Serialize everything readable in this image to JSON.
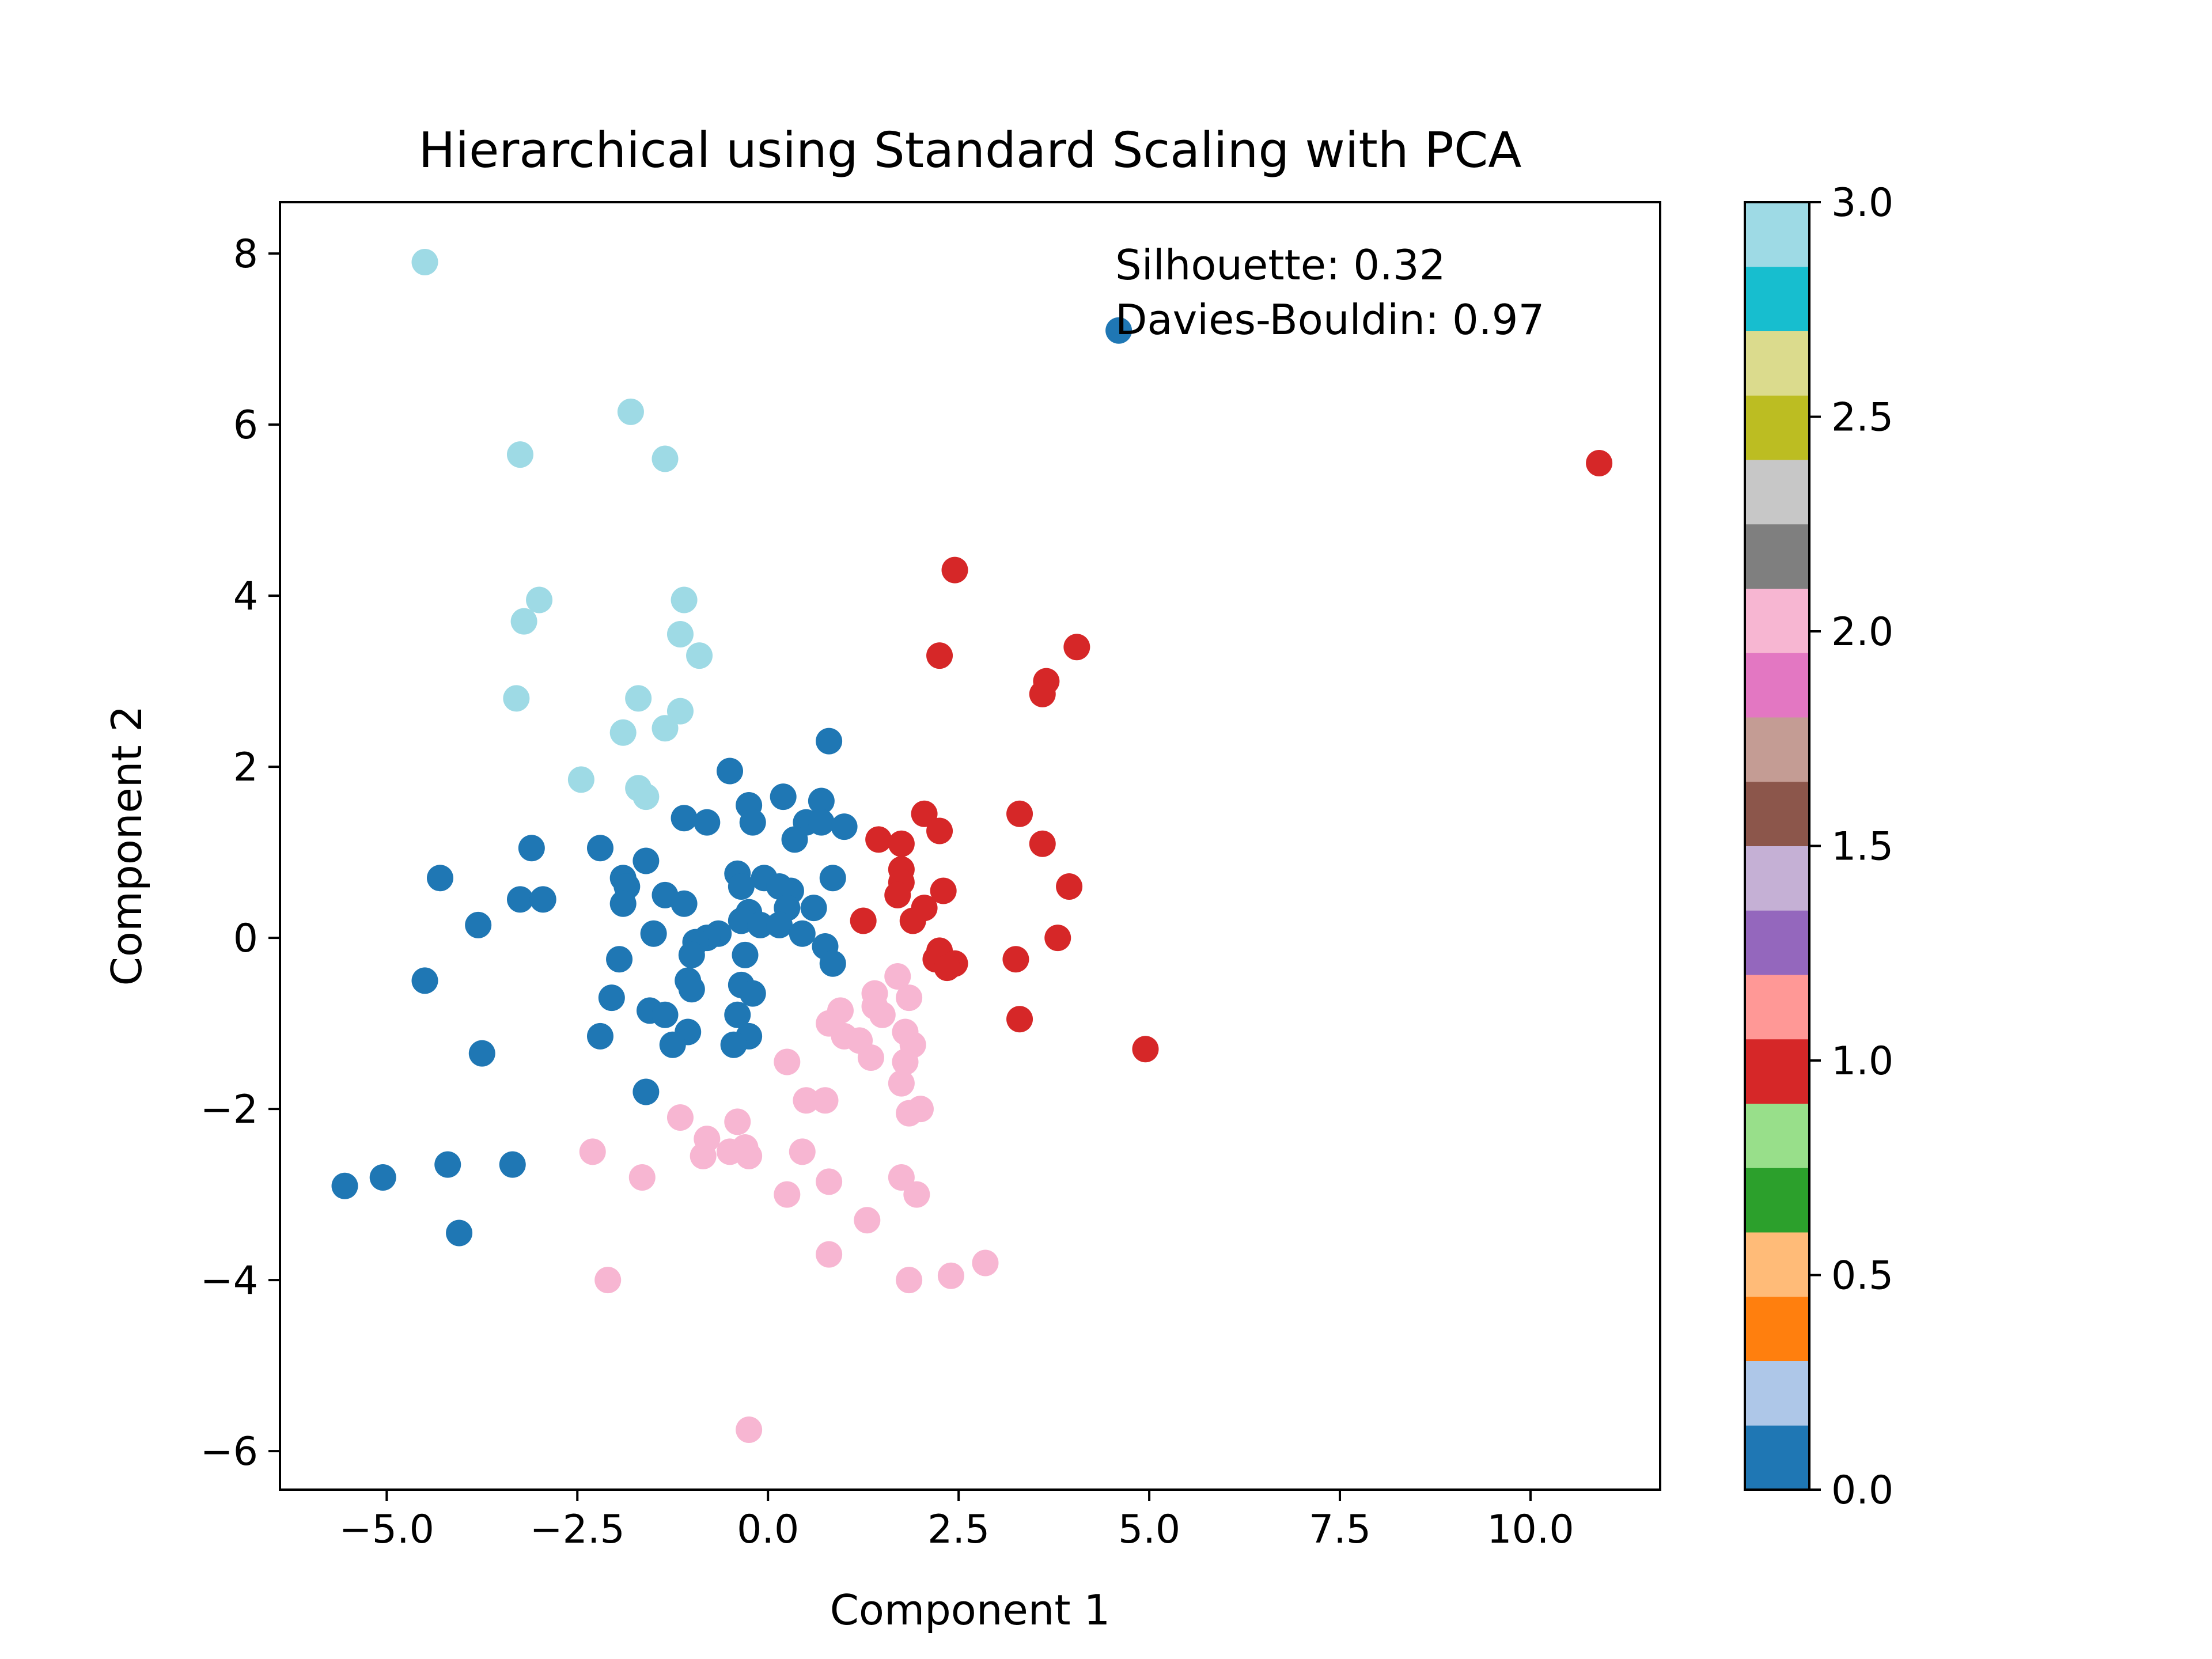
{
  "chart_data": {
    "type": "scatter",
    "title": "Hierarchical using Standard Scaling with PCA",
    "xlabel": "Component 1",
    "ylabel": "Component 2",
    "xlim": [
      -6.4,
      11.7
    ],
    "ylim": [
      -6.45,
      8.6
    ],
    "xticks": [
      -5.0,
      -2.5,
      0.0,
      2.5,
      5.0,
      7.5,
      10.0
    ],
    "xtick_labels": [
      "−5.0",
      "−2.5",
      "0.0",
      "2.5",
      "5.0",
      "7.5",
      "10.0"
    ],
    "yticks": [
      -6,
      -4,
      -2,
      0,
      2,
      4,
      6,
      8
    ],
    "ytick_labels": [
      "−6",
      "−4",
      "−2",
      "0",
      "2",
      "4",
      "6",
      "8"
    ],
    "grid": false,
    "colormap": "tab20",
    "annotations": [
      "Silhouette: 0.32",
      "Davies-Bouldin: 0.97"
    ],
    "colorbar": {
      "range": [
        0.0,
        3.0
      ],
      "ticks": [
        0.0,
        0.5,
        1.0,
        1.5,
        2.0,
        2.5,
        3.0
      ],
      "tick_labels": [
        "0.0",
        "0.5",
        "1.0",
        "1.5",
        "2.0",
        "2.5",
        "3.0"
      ],
      "colors": [
        "#1f77b4",
        "#aec7e8",
        "#ff7f0e",
        "#ffbb78",
        "#2ca02c",
        "#98df8a",
        "#d62728",
        "#ff9896",
        "#9467bd",
        "#c5b0d5",
        "#8c564b",
        "#c49c94",
        "#e377c2",
        "#f7b6d2",
        "#7f7f7f",
        "#c7c7c7",
        "#bcbd22",
        "#dbdb8d",
        "#17becf",
        "#9edae5"
      ]
    },
    "series": [
      {
        "label": 0,
        "color": "#1f77b4",
        "points": [
          [
            4.6,
            7.1
          ],
          [
            0.8,
            2.3
          ],
          [
            -0.5,
            1.95
          ],
          [
            0.2,
            1.65
          ],
          [
            0.7,
            1.6
          ],
          [
            -0.25,
            1.55
          ],
          [
            -1.1,
            1.4
          ],
          [
            -0.8,
            1.35
          ],
          [
            -0.2,
            1.35
          ],
          [
            0.5,
            1.35
          ],
          [
            0.7,
            1.35
          ],
          [
            1.0,
            1.3
          ],
          [
            0.35,
            1.15
          ],
          [
            -3.1,
            1.05
          ],
          [
            -2.2,
            1.05
          ],
          [
            -1.6,
            0.9
          ],
          [
            -0.4,
            0.75
          ],
          [
            -0.05,
            0.7
          ],
          [
            0.85,
            0.7
          ],
          [
            -4.3,
            0.7
          ],
          [
            -1.9,
            0.7
          ],
          [
            -1.85,
            0.6
          ],
          [
            -0.35,
            0.6
          ],
          [
            0.15,
            0.6
          ],
          [
            0.3,
            0.55
          ],
          [
            -3.25,
            0.45
          ],
          [
            -2.95,
            0.45
          ],
          [
            -1.35,
            0.5
          ],
          [
            -1.1,
            0.4
          ],
          [
            -1.9,
            0.4
          ],
          [
            0.25,
            0.35
          ],
          [
            0.6,
            0.35
          ],
          [
            -0.25,
            0.3
          ],
          [
            -0.35,
            0.2
          ],
          [
            -0.1,
            0.15
          ],
          [
            0.15,
            0.15
          ],
          [
            -3.8,
            0.15
          ],
          [
            -1.5,
            0.05
          ],
          [
            -0.65,
            0.05
          ],
          [
            0.45,
            0.05
          ],
          [
            -0.8,
            0.0
          ],
          [
            -0.95,
            -0.05
          ],
          [
            0.75,
            -0.1
          ],
          [
            -1.0,
            -0.2
          ],
          [
            -0.3,
            -0.2
          ],
          [
            -1.95,
            -0.25
          ],
          [
            0.85,
            -0.3
          ],
          [
            -4.5,
            -0.5
          ],
          [
            -1.05,
            -0.5
          ],
          [
            -0.35,
            -0.55
          ],
          [
            -1.0,
            -0.6
          ],
          [
            -0.2,
            -0.65
          ],
          [
            -2.05,
            -0.7
          ],
          [
            -1.55,
            -0.85
          ],
          [
            -1.35,
            -0.9
          ],
          [
            -0.4,
            -0.9
          ],
          [
            -1.05,
            -1.1
          ],
          [
            -2.2,
            -1.15
          ],
          [
            -0.25,
            -1.15
          ],
          [
            -1.25,
            -1.25
          ],
          [
            -0.45,
            -1.25
          ],
          [
            -3.75,
            -1.35
          ],
          [
            -1.6,
            -1.8
          ],
          [
            -4.2,
            -2.65
          ],
          [
            -3.35,
            -2.65
          ],
          [
            -5.05,
            -2.8
          ],
          [
            -5.55,
            -2.9
          ],
          [
            -4.05,
            -3.45
          ]
        ]
      },
      {
        "label": 1,
        "color": "#d62728",
        "points": [
          [
            10.9,
            5.55
          ],
          [
            2.45,
            4.3
          ],
          [
            4.05,
            3.4
          ],
          [
            3.65,
            3.0
          ],
          [
            2.25,
            3.3
          ],
          [
            3.6,
            2.85
          ],
          [
            3.3,
            1.45
          ],
          [
            2.05,
            1.45
          ],
          [
            2.25,
            1.25
          ],
          [
            1.45,
            1.15
          ],
          [
            1.75,
            1.1
          ],
          [
            3.6,
            1.1
          ],
          [
            1.75,
            0.8
          ],
          [
            1.75,
            0.65
          ],
          [
            3.95,
            0.6
          ],
          [
            2.3,
            0.55
          ],
          [
            1.7,
            0.5
          ],
          [
            2.05,
            0.35
          ],
          [
            1.25,
            0.2
          ],
          [
            1.9,
            0.2
          ],
          [
            3.8,
            0.0
          ],
          [
            2.25,
            -0.15
          ],
          [
            2.2,
            -0.25
          ],
          [
            2.45,
            -0.3
          ],
          [
            3.25,
            -0.25
          ],
          [
            2.35,
            -0.35
          ],
          [
            3.3,
            -0.95
          ],
          [
            4.95,
            -1.3
          ]
        ]
      },
      {
        "label": 2,
        "color": "#f7b6d2",
        "points": [
          [
            1.7,
            -0.45
          ],
          [
            1.4,
            -0.65
          ],
          [
            1.85,
            -0.7
          ],
          [
            1.4,
            -0.8
          ],
          [
            0.95,
            -0.85
          ],
          [
            1.5,
            -0.9
          ],
          [
            0.8,
            -1.0
          ],
          [
            1.8,
            -1.1
          ],
          [
            1.0,
            -1.15
          ],
          [
            1.2,
            -1.2
          ],
          [
            1.9,
            -1.25
          ],
          [
            1.35,
            -1.4
          ],
          [
            0.25,
            -1.45
          ],
          [
            1.8,
            -1.45
          ],
          [
            1.75,
            -1.7
          ],
          [
            0.5,
            -1.9
          ],
          [
            0.75,
            -1.9
          ],
          [
            2.0,
            -2.0
          ],
          [
            1.85,
            -2.05
          ],
          [
            -1.15,
            -2.1
          ],
          [
            -0.4,
            -2.15
          ],
          [
            -0.8,
            -2.35
          ],
          [
            -2.3,
            -2.5
          ],
          [
            -0.3,
            -2.45
          ],
          [
            -0.85,
            -2.55
          ],
          [
            -0.5,
            -2.5
          ],
          [
            -0.25,
            -2.55
          ],
          [
            0.45,
            -2.5
          ],
          [
            -1.65,
            -2.8
          ],
          [
            1.75,
            -2.8
          ],
          [
            0.8,
            -2.85
          ],
          [
            1.95,
            -3.0
          ],
          [
            0.25,
            -3.0
          ],
          [
            1.3,
            -3.3
          ],
          [
            0.8,
            -3.7
          ],
          [
            2.85,
            -3.8
          ],
          [
            -2.1,
            -4.0
          ],
          [
            1.85,
            -4.0
          ],
          [
            2.4,
            -3.95
          ],
          [
            -0.25,
            -5.75
          ]
        ]
      },
      {
        "label": 3,
        "color": "#9edae5",
        "points": [
          [
            -4.5,
            7.9
          ],
          [
            -1.8,
            6.15
          ],
          [
            -3.25,
            5.65
          ],
          [
            -1.35,
            5.6
          ],
          [
            -3.0,
            3.95
          ],
          [
            -1.1,
            3.95
          ],
          [
            -3.2,
            3.7
          ],
          [
            -1.15,
            3.55
          ],
          [
            -0.9,
            3.3
          ],
          [
            -3.3,
            2.8
          ],
          [
            -1.7,
            2.8
          ],
          [
            -1.15,
            2.65
          ],
          [
            -1.9,
            2.4
          ],
          [
            -1.35,
            2.45
          ],
          [
            -2.45,
            1.85
          ],
          [
            -1.7,
            1.75
          ],
          [
            -1.6,
            1.65
          ]
        ]
      }
    ]
  }
}
